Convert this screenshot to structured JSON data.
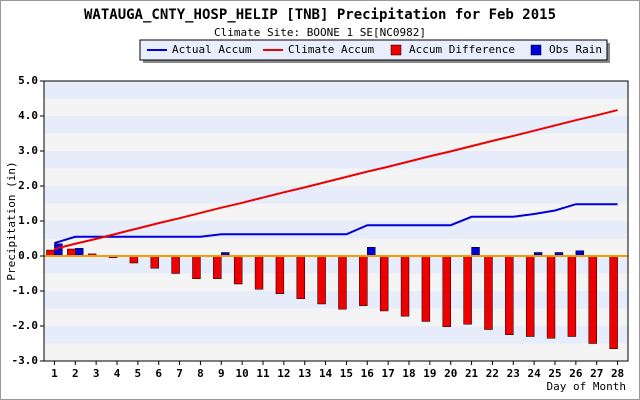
{
  "chart_data": {
    "type": "combo",
    "title": "WATAUGA_CNTY_HOSP_HELIP [TNB] Precipitation for Feb 2015",
    "subtitle": "Climate Site: BOONE 1 SE[NC0982]",
    "y_label": "Precipitation (in)",
    "x_label": "Day of Month",
    "x": [
      1,
      2,
      3,
      4,
      5,
      6,
      7,
      8,
      9,
      10,
      11,
      12,
      13,
      14,
      15,
      16,
      17,
      18,
      19,
      20,
      21,
      22,
      23,
      24,
      25,
      26,
      27,
      28
    ],
    "xlim": [
      0.5,
      28.5
    ],
    "xticks": [
      1,
      2,
      3,
      4,
      5,
      6,
      7,
      8,
      9,
      10,
      11,
      12,
      13,
      14,
      15,
      16,
      17,
      18,
      19,
      20,
      21,
      22,
      23,
      24,
      25,
      26,
      27,
      28
    ],
    "ylim": [
      -3,
      5
    ],
    "yticks": [
      {
        "value": -3,
        "label": "-3.0"
      },
      {
        "value": -2,
        "label": "-2.0"
      },
      {
        "value": -1,
        "label": "-1.0"
      },
      {
        "value": 0,
        "label": "0.0"
      },
      {
        "value": 1,
        "label": "1.0"
      },
      {
        "value": 2,
        "label": "2.0"
      },
      {
        "value": 3,
        "label": "3.0"
      },
      {
        "value": 4,
        "label": "4.0"
      },
      {
        "value": 5,
        "label": "5.0"
      }
    ],
    "series": [
      {
        "name": "Actual Accum",
        "type": "line",
        "color": "#0000dd",
        "values": [
          0.37,
          0.55,
          0.55,
          0.55,
          0.55,
          0.55,
          0.55,
          0.55,
          0.62,
          0.62,
          0.62,
          0.62,
          0.62,
          0.62,
          0.62,
          0.88,
          0.88,
          0.88,
          0.88,
          0.88,
          1.12,
          1.12,
          1.12,
          1.2,
          1.3,
          1.48,
          1.48,
          1.48
        ]
      },
      {
        "name": "Climate Accum",
        "type": "line",
        "color": "#ee0000",
        "values": [
          0.2,
          0.35,
          0.49,
          0.64,
          0.79,
          0.94,
          1.08,
          1.23,
          1.38,
          1.52,
          1.67,
          1.82,
          1.96,
          2.11,
          2.26,
          2.41,
          2.55,
          2.7,
          2.85,
          2.99,
          3.14,
          3.29,
          3.43,
          3.58,
          3.73,
          3.88,
          4.02,
          4.17
        ]
      },
      {
        "name": "Accum Difference",
        "type": "bar",
        "color": "#ee0000",
        "values": [
          0.17,
          0.2,
          0.06,
          -0.05,
          -0.2,
          -0.35,
          -0.5,
          -0.65,
          -0.65,
          -0.8,
          -0.95,
          -1.08,
          -1.22,
          -1.37,
          -1.52,
          -1.42,
          -1.57,
          -1.72,
          -1.87,
          -2.02,
          -1.95,
          -2.1,
          -2.25,
          -2.3,
          -2.35,
          -2.3,
          -2.5,
          -2.65
        ]
      },
      {
        "name": "Obs Rain",
        "type": "bar",
        "color": "#0000dd",
        "values": [
          0.35,
          0.22,
          0,
          0,
          0,
          0,
          0,
          0,
          0.1,
          0,
          0,
          0,
          0,
          0,
          0,
          0.25,
          0,
          0,
          0,
          0,
          0.25,
          0,
          0,
          0.1,
          0.1,
          0.15,
          0,
          0
        ]
      }
    ]
  }
}
